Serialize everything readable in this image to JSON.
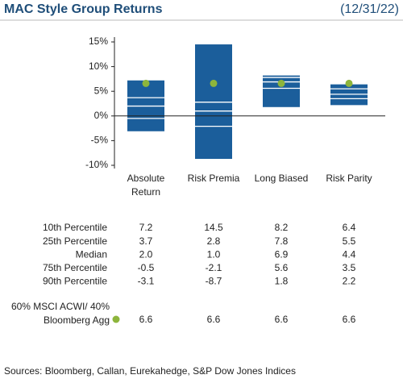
{
  "chart_data": {
    "type": "floating-box",
    "title": "MAC Style Group Returns",
    "date": "(12/31/22)",
    "source": "Sources: Bloomberg, Callan, Eurekahedge, S&P Dow Jones Indices",
    "categories": [
      "Absolute Return",
      "Risk Premia",
      "Long Biased",
      "Risk Parity"
    ],
    "ylim": [
      -10,
      15
    ],
    "yticks": [
      {
        "value": 15,
        "label": "15%"
      },
      {
        "value": 10,
        "label": "10%"
      },
      {
        "value": 5,
        "label": "5%"
      },
      {
        "value": 0,
        "label": "0%"
      },
      {
        "value": -5,
        "label": "-5%"
      },
      {
        "value": -10,
        "label": "-10%"
      }
    ],
    "series": [
      {
        "name": "10th Percentile",
        "color": "#1b5e9b",
        "values": [
          7.2,
          14.5,
          8.2,
          6.4
        ]
      },
      {
        "name": "25th Percentile",
        "color": "#1b5e9b",
        "values": [
          3.7,
          2.8,
          7.8,
          5.5
        ]
      },
      {
        "name": "Median",
        "color": "#1b5e9b",
        "values": [
          2.0,
          1.0,
          6.9,
          4.4
        ],
        "value_labels": [
          "2.0",
          "1.0",
          "6.9",
          "4.4"
        ]
      },
      {
        "name": "75th Percentile",
        "color": "#1b5e9b",
        "values": [
          -0.5,
          -2.1,
          5.6,
          3.5
        ]
      },
      {
        "name": "90th Percentile",
        "color": "#1b5e9b",
        "values": [
          -3.1,
          -8.7,
          1.8,
          2.2
        ]
      },
      {
        "name": "60% MSCI ACWI/ 40% Bloomberg Agg",
        "color": "#8db53c",
        "values": [
          6.6,
          6.6,
          6.6,
          6.6
        ]
      }
    ]
  }
}
